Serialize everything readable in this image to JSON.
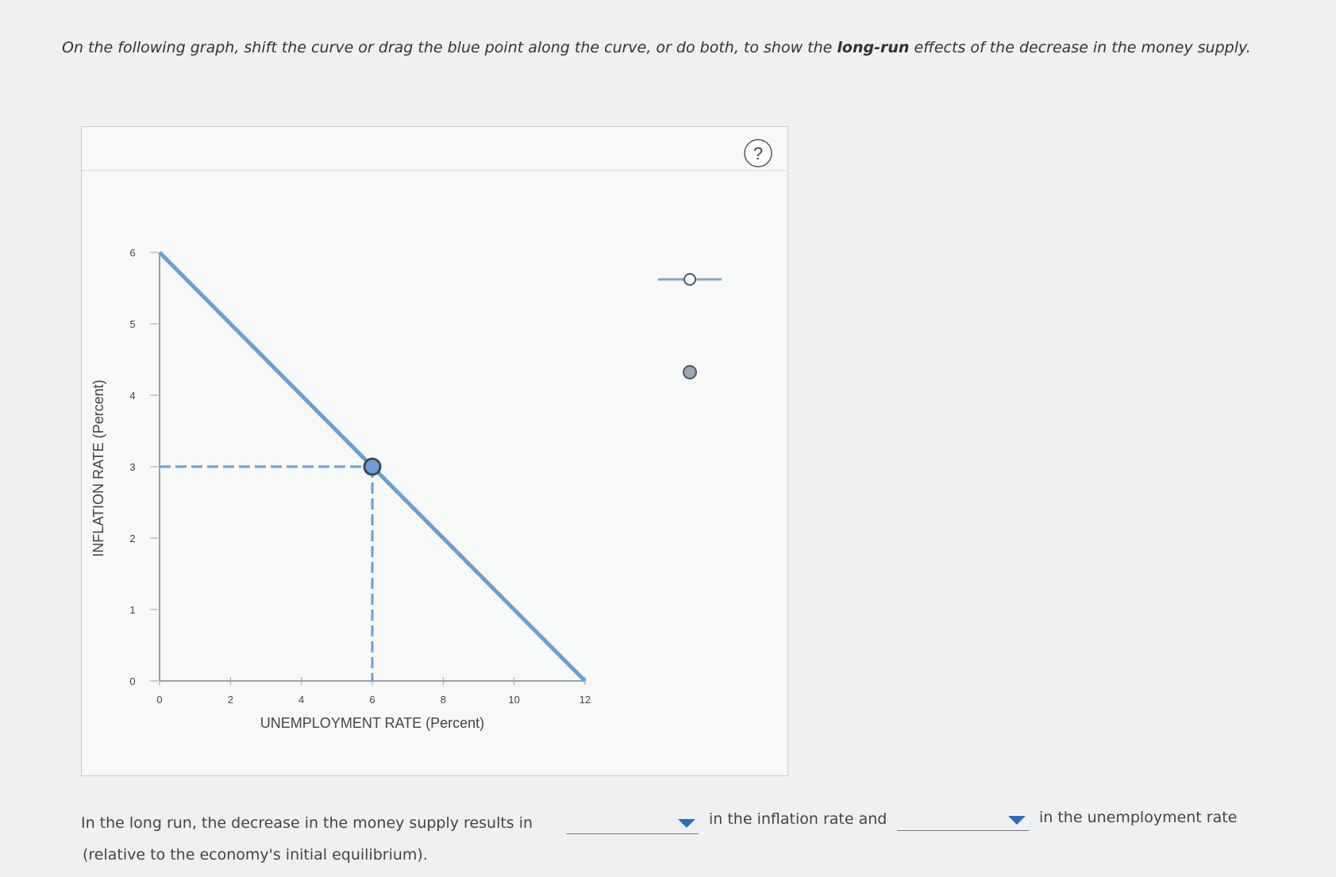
{
  "instruction": {
    "before": "On the following graph, shift the curve or drag the blue point along the curve, or do both, to show the",
    "bold": "long-run",
    "after": "effects of the decrease in the money supply."
  },
  "help": "?",
  "chart_data": {
    "type": "line",
    "x": [
      0,
      12
    ],
    "series": [
      {
        "color": "#6a9fd4",
        "values": [
          6,
          0
        ]
      }
    ],
    "point": {
      "x": 6,
      "y": 3,
      "color": "#6a9fd4"
    },
    "xlim": [
      0,
      12
    ],
    "ylim": [
      0,
      6
    ],
    "xticks": [
      0,
      2,
      4,
      6,
      8,
      10,
      12
    ],
    "yticks": [
      0,
      1,
      2,
      3,
      4,
      5,
      6
    ],
    "xlabel": "UNEMPLOYMENT RATE (Percent)",
    "ylabel": "INFLATION RATE (Percent)"
  },
  "question": {
    "part1": "In the long run, the decrease in the money supply results in",
    "part2": "in the inflation rate and",
    "part3": "in the unemployment rate",
    "part4": "(relative to the economy's initial equilibrium)."
  }
}
